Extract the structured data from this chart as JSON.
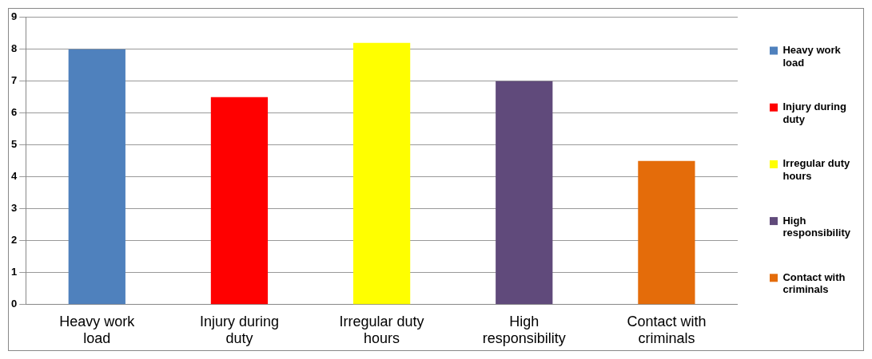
{
  "chart_data": {
    "type": "bar",
    "categories": [
      "Heavy work load",
      "Injury during duty",
      "Irregular duty hours",
      "High responsibility",
      "Contact with criminals"
    ],
    "series": [
      {
        "name": "Heavy work load",
        "color": "#4f81bd",
        "values": [
          8,
          null,
          null,
          null,
          null
        ]
      },
      {
        "name": "Injury during duty",
        "color": "#ff0000",
        "values": [
          null,
          6.5,
          null,
          null,
          null
        ]
      },
      {
        "name": "Irregular duty hours",
        "color": "#ffff00",
        "values": [
          null,
          null,
          8.2,
          null,
          null
        ]
      },
      {
        "name": "High responsibility",
        "color": "#604a7b",
        "values": [
          null,
          null,
          null,
          7,
          null
        ]
      },
      {
        "name": "Contact with criminals",
        "color": "#e46c0a",
        "values": [
          null,
          null,
          null,
          null,
          4.5
        ]
      }
    ],
    "ylim": [
      0,
      9
    ],
    "yticks": [
      0,
      1,
      2,
      3,
      4,
      5,
      6,
      7,
      8,
      9
    ],
    "grid": "y",
    "legend": "right"
  }
}
